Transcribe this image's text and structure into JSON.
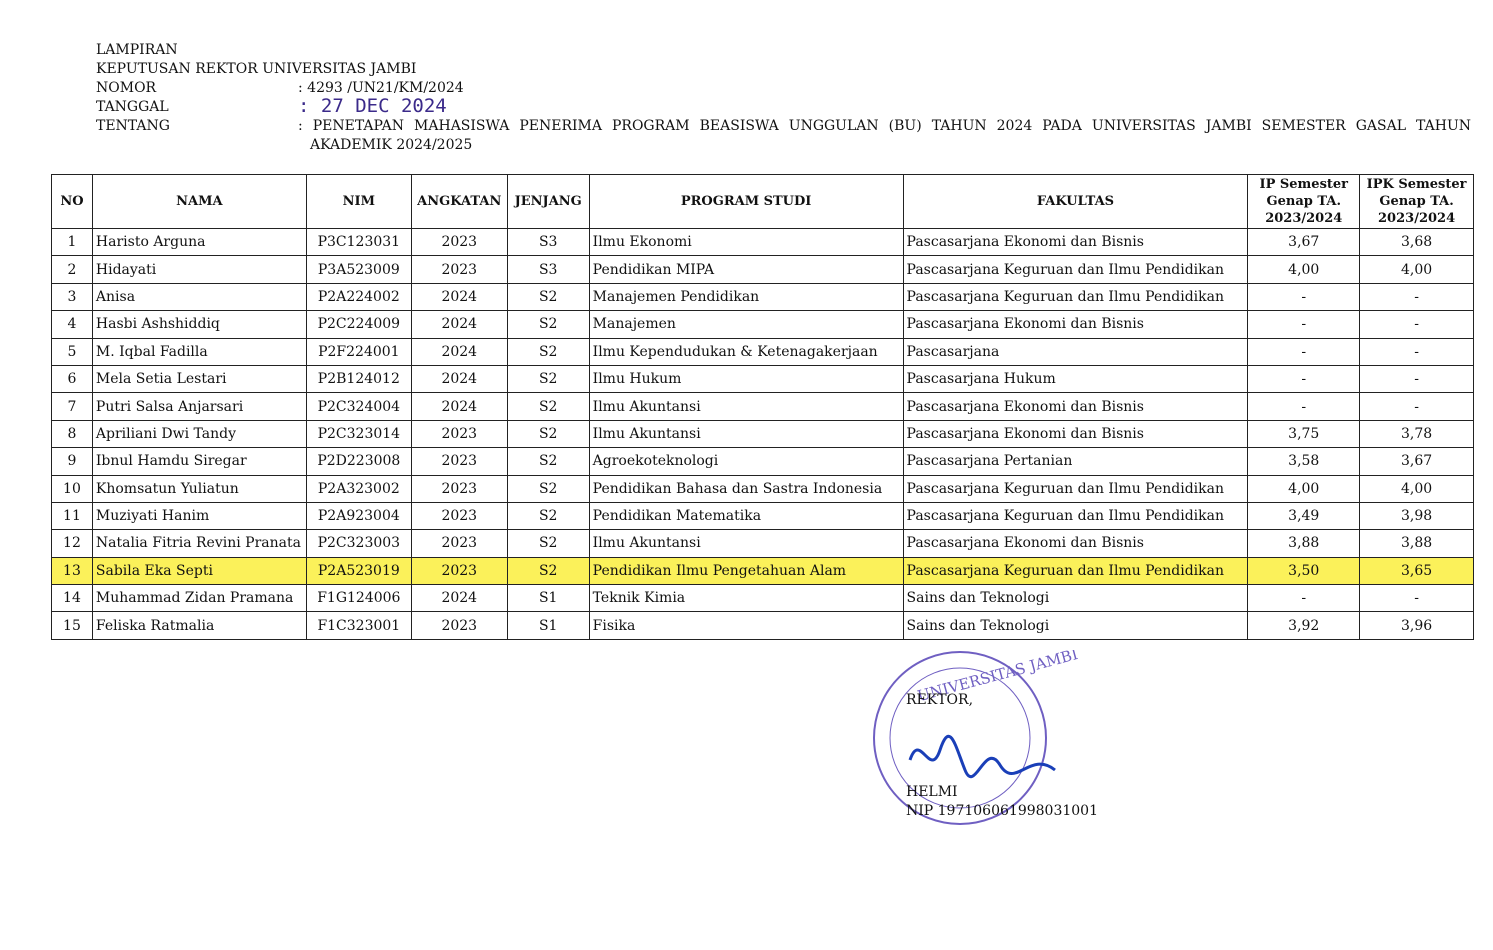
{
  "header": {
    "lines": [
      "LAMPIRAN",
      "KEPUTUSAN REKTOR UNIVERSITAS JAMBI"
    ],
    "fields": [
      {
        "label": "NOMOR",
        "value": ": 4293 /UN21/KM/2024"
      },
      {
        "label": "TANGGAL",
        "value": ": 27 DEC 2024"
      },
      {
        "label": "TENTANG",
        "value": ": PENETAPAN MAHASISWA PENERIMA PROGRAM BEASISWA UNGGULAN (BU) TAHUN 2024 PADA UNIVERSITAS JAMBI SEMESTER GASAL TAHUN AKADEMIK 2024/2025"
      }
    ]
  },
  "table": {
    "columns": [
      "NO",
      "NAMA",
      "NIM",
      "ANGKATAN",
      "JENJANG",
      "PROGRAM STUDI",
      "FAKULTAS",
      "IP Semester Genap TA. 2023/2024",
      "IPK Semester Genap TA. 2023/2024"
    ],
    "rows": [
      [
        "1",
        "Haristo Arguna",
        "P3C123031",
        "2023",
        "S3",
        "Ilmu Ekonomi",
        "Pascasarjana Ekonomi dan Bisnis",
        "3,67",
        "3,68"
      ],
      [
        "2",
        "Hidayati",
        "P3A523009",
        "2023",
        "S3",
        "Pendidikan MIPA",
        "Pascasarjana Keguruan dan Ilmu Pendidikan",
        "4,00",
        "4,00"
      ],
      [
        "3",
        "Anisa",
        "P2A224002",
        "2024",
        "S2",
        "Manajemen Pendidikan",
        "Pascasarjana Keguruan dan Ilmu Pendidikan",
        "-",
        "-"
      ],
      [
        "4",
        "Hasbi Ashshiddiq",
        "P2C224009",
        "2024",
        "S2",
        "Manajemen",
        "Pascasarjana Ekonomi dan Bisnis",
        "-",
        "-"
      ],
      [
        "5",
        "M. Iqbal Fadilla",
        "P2F224001",
        "2024",
        "S2",
        "Ilmu Kependudukan & Ketenagakerjaan",
        "Pascasarjana",
        "-",
        "-"
      ],
      [
        "6",
        "Mela Setia Lestari",
        "P2B124012",
        "2024",
        "S2",
        "Ilmu Hukum",
        "Pascasarjana Hukum",
        "-",
        "-"
      ],
      [
        "7",
        "Putri Salsa Anjarsari",
        "P2C324004",
        "2024",
        "S2",
        "Ilmu Akuntansi",
        "Pascasarjana Ekonomi dan Bisnis",
        "-",
        "-"
      ],
      [
        "8",
        "Apriliani Dwi Tandy",
        "P2C323014",
        "2023",
        "S2",
        "Ilmu Akuntansi",
        "Pascasarjana Ekonomi dan Bisnis",
        "3,75",
        "3,78"
      ],
      [
        "9",
        "Ibnul Hamdu Siregar",
        "P2D223008",
        "2023",
        "S2",
        "Agroekoteknologi",
        "Pascasarjana Pertanian",
        "3,58",
        "3,67"
      ],
      [
        "10",
        "Khomsatun Yuliatun",
        "P2A323002",
        "2023",
        "S2",
        "Pendidikan Bahasa dan Sastra Indonesia",
        "Pascasarjana Keguruan dan Ilmu Pendidikan",
        "4,00",
        "4,00"
      ],
      [
        "11",
        "Muziyati Hanim",
        "P2A923004",
        "2023",
        "S2",
        "Pendidikan Matematika",
        "Pascasarjana Keguruan dan Ilmu Pendidikan",
        "3,49",
        "3,98"
      ],
      [
        "12",
        "Natalia Fitria Revini Pranata",
        "P2C323003",
        "2023",
        "S2",
        "Ilmu Akuntansi",
        "Pascasarjana Ekonomi dan Bisnis",
        "3,88",
        "3,88"
      ],
      [
        "13",
        "Sabila Eka Septi",
        "P2A523019",
        "2023",
        "S2",
        "Pendidikan Ilmu Pengetahuan Alam",
        "Pascasarjana Keguruan dan Ilmu Pendidikan",
        "3,50",
        "3,65"
      ],
      [
        "14",
        "Muhammad Zidan Pramana",
        "F1G124006",
        "2024",
        "S1",
        "Teknik Kimia",
        "Sains dan Teknologi",
        "-",
        "-"
      ],
      [
        "15",
        "Feliska Ratmalia",
        "F1C323001",
        "2023",
        "S1",
        "Fisika",
        "Sains dan Teknologi",
        "3,92",
        "3,96"
      ]
    ]
  },
  "signature": {
    "stamp": "UNIVERSITAS JAMBI",
    "role": "REKTOR,",
    "name": "HELMI",
    "nip": "NIP 197106061998031001"
  }
}
